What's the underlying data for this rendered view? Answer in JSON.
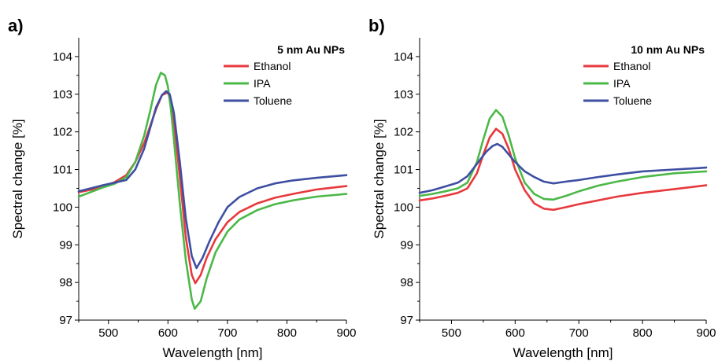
{
  "chart_data": [
    {
      "type": "line",
      "panel_label": "a)",
      "legend_title": "5 nm Au NPs",
      "xlabel": "Wavelength [nm]",
      "ylabel": "Spectral change [%]",
      "xlim": [
        450,
        900
      ],
      "ylim": [
        97,
        104.5
      ],
      "x_ticks": [
        500,
        600,
        700,
        800,
        900
      ],
      "y_ticks": [
        97,
        98,
        99,
        100,
        101,
        102,
        103,
        104
      ],
      "legend_position": "top-right",
      "grid": false,
      "series": [
        {
          "name": "Ethanol",
          "color": "#e8393c",
          "x": [
            450,
            470,
            490,
            510,
            530,
            545,
            560,
            570,
            580,
            590,
            600,
            605,
            610,
            620,
            630,
            640,
            646,
            655,
            665,
            680,
            700,
            720,
            750,
            780,
            810,
            850,
            900
          ],
          "y": [
            100.4,
            100.46,
            100.55,
            100.66,
            100.85,
            101.2,
            101.7,
            102.15,
            102.6,
            102.98,
            103.05,
            102.8,
            102.3,
            100.8,
            99.2,
            98.2,
            97.98,
            98.2,
            98.65,
            99.15,
            99.6,
            99.87,
            100.1,
            100.25,
            100.35,
            100.47,
            100.56
          ]
        },
        {
          "name": "IPA",
          "color": "#4cb848",
          "x": [
            450,
            470,
            490,
            510,
            530,
            545,
            560,
            570,
            580,
            588,
            595,
            600,
            605,
            610,
            620,
            630,
            640,
            645,
            655,
            665,
            680,
            700,
            720,
            750,
            780,
            810,
            850,
            900
          ],
          "y": [
            100.28,
            100.4,
            100.52,
            100.62,
            100.8,
            101.2,
            101.9,
            102.55,
            103.25,
            103.57,
            103.5,
            103.2,
            102.6,
            101.8,
            100.1,
            98.6,
            97.55,
            97.3,
            97.5,
            98.1,
            98.8,
            99.35,
            99.67,
            99.92,
            100.08,
            100.18,
            100.28,
            100.35
          ]
        },
        {
          "name": "Toluene",
          "color": "#3e4fa2",
          "x": [
            450,
            470,
            490,
            510,
            530,
            545,
            560,
            570,
            580,
            590,
            597,
            603,
            610,
            620,
            630,
            640,
            648,
            658,
            670,
            685,
            700,
            720,
            750,
            780,
            810,
            850,
            900
          ],
          "y": [
            100.42,
            100.5,
            100.58,
            100.65,
            100.72,
            101.0,
            101.55,
            102.1,
            102.65,
            102.98,
            103.08,
            103.0,
            102.5,
            101.2,
            99.7,
            98.7,
            98.38,
            98.65,
            99.1,
            99.6,
            100.0,
            100.27,
            100.5,
            100.63,
            100.71,
            100.78,
            100.85
          ]
        }
      ]
    },
    {
      "type": "line",
      "panel_label": "b)",
      "legend_title": "10 nm Au NPs",
      "xlabel": "Wavelength [nm]",
      "ylabel": "Spectral change [%]",
      "xlim": [
        450,
        900
      ],
      "ylim": [
        97,
        104.5
      ],
      "x_ticks": [
        500,
        600,
        700,
        800,
        900
      ],
      "y_ticks": [
        97,
        98,
        99,
        100,
        101,
        102,
        103,
        104
      ],
      "legend_position": "top-right",
      "grid": false,
      "series": [
        {
          "name": "Ethanol",
          "color": "#e8393c",
          "x": [
            450,
            470,
            490,
            510,
            525,
            540,
            550,
            560,
            570,
            580,
            590,
            600,
            615,
            630,
            645,
            660,
            680,
            700,
            730,
            760,
            800,
            850,
            900
          ],
          "y": [
            100.18,
            100.23,
            100.3,
            100.38,
            100.5,
            100.9,
            101.4,
            101.85,
            102.08,
            101.95,
            101.55,
            101.0,
            100.45,
            100.1,
            99.96,
            99.93,
            100.0,
            100.08,
            100.18,
            100.28,
            100.38,
            100.48,
            100.58
          ]
        },
        {
          "name": "IPA",
          "color": "#4cb848",
          "x": [
            450,
            470,
            490,
            510,
            525,
            540,
            550,
            560,
            570,
            580,
            590,
            600,
            615,
            630,
            645,
            660,
            680,
            700,
            730,
            760,
            800,
            850,
            900
          ],
          "y": [
            100.3,
            100.35,
            100.42,
            100.5,
            100.65,
            101.2,
            101.8,
            102.35,
            102.58,
            102.4,
            101.9,
            101.3,
            100.65,
            100.35,
            100.22,
            100.2,
            100.3,
            100.42,
            100.57,
            100.68,
            100.8,
            100.9,
            100.95
          ]
        },
        {
          "name": "Toluene",
          "color": "#3e4fa2",
          "x": [
            450,
            470,
            490,
            510,
            525,
            540,
            555,
            565,
            572,
            580,
            590,
            600,
            615,
            630,
            645,
            660,
            680,
            700,
            730,
            760,
            800,
            850,
            900
          ],
          "y": [
            100.38,
            100.45,
            100.55,
            100.65,
            100.82,
            101.15,
            101.48,
            101.63,
            101.68,
            101.6,
            101.4,
            101.2,
            100.95,
            100.8,
            100.68,
            100.63,
            100.68,
            100.72,
            100.8,
            100.87,
            100.95,
            101.0,
            101.05
          ]
        }
      ]
    }
  ]
}
